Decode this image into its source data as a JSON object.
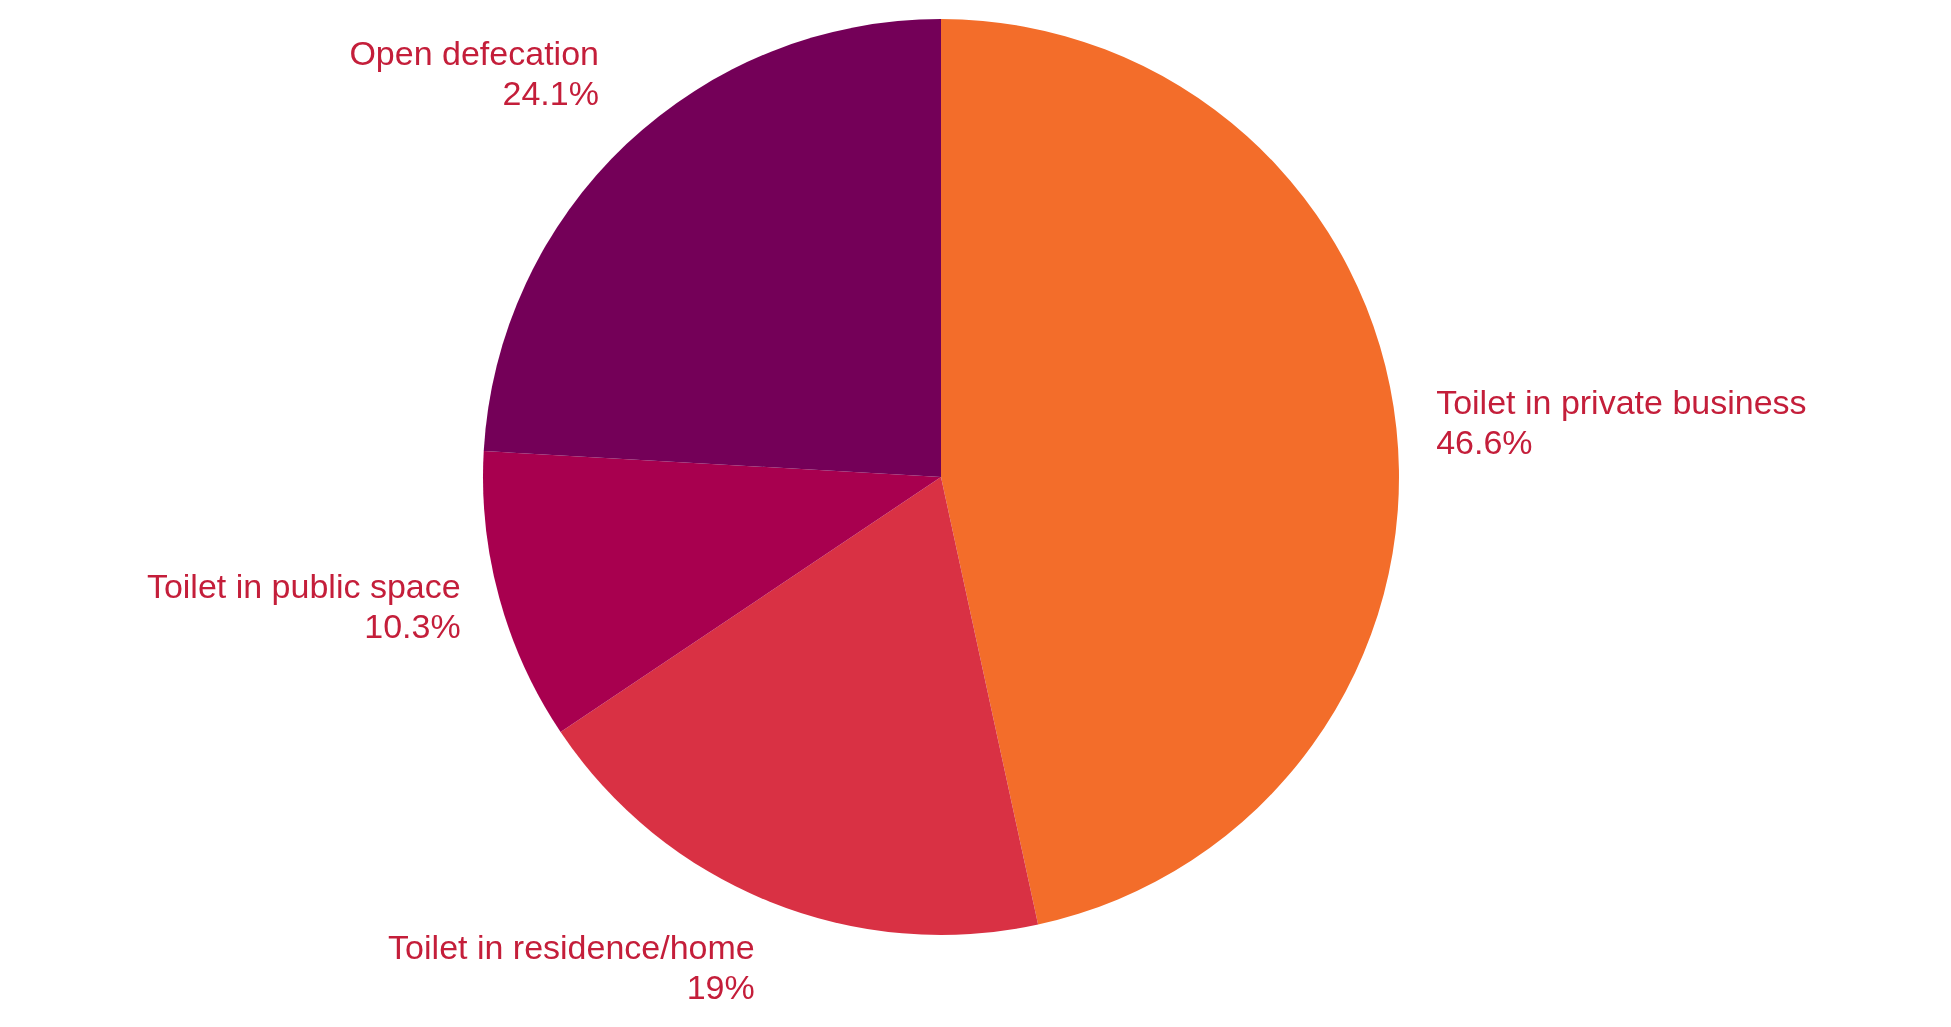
{
  "chart_data": {
    "type": "pie",
    "categories": [
      "Toilet in private business",
      "Toilet in residence/home",
      "Toilet in public space",
      "Open defecation"
    ],
    "values": [
      46.6,
      19,
      10.3,
      24.1
    ],
    "colors": [
      "#f36d2a",
      "#d93144",
      "#a8004f",
      "#740058"
    ],
    "value_labels": [
      "46.6%",
      "19%",
      "10.3%",
      "24.1%"
    ],
    "legend": false
  }
}
